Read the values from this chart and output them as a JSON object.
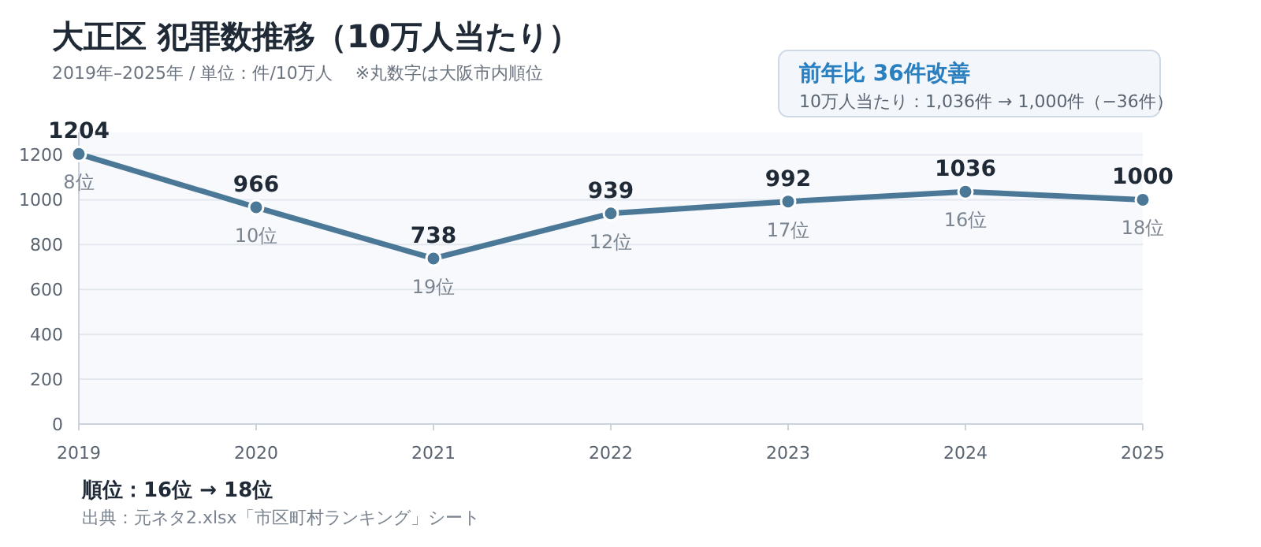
{
  "chart_data": {
    "type": "line",
    "title": "大正区  犯罪数推移（10万人当たり）",
    "subtitle": "2019年–2025年 / 単位：件/10万人　 ※丸数字は大阪市内順位",
    "x": [
      2019,
      2020,
      2021,
      2022,
      2023,
      2024,
      2025
    ],
    "series": [
      {
        "color": "#4a7896",
        "values": [
          1204,
          966,
          738,
          939,
          992,
          1036,
          1000
        ]
      }
    ],
    "xlim": [
      2019,
      2025
    ],
    "xticks": [
      2019,
      2020,
      2021,
      2022,
      2023,
      2024,
      2025
    ],
    "ylim": [
      0,
      1300
    ],
    "yticks": [
      0,
      200,
      400,
      600,
      800,
      1000,
      1200
    ],
    "grid": "y",
    "marker": "circle",
    "line_style": "solid",
    "data_labels": true,
    "annotations": [
      {
        "text": "8位",
        "x": 2019,
        "y": 1204
      },
      {
        "text": "10位",
        "x": 2020,
        "y": 966
      },
      {
        "text": "19位",
        "x": 2021,
        "y": 738
      },
      {
        "text": "12位",
        "x": 2022,
        "y": 939
      },
      {
        "text": "17位",
        "x": 2023,
        "y": 992
      },
      {
        "text": "16位",
        "x": 2024,
        "y": 1036
      },
      {
        "text": "18位",
        "x": 2025,
        "y": 1000
      },
      "前年比  36件改善",
      "10万人当たり：1,036件 → 1,000件（−36件）",
      "順位：16位 → 18位",
      "出典：元ネタ2.xlsx「市区町村ランキング」シート"
    ]
  }
}
